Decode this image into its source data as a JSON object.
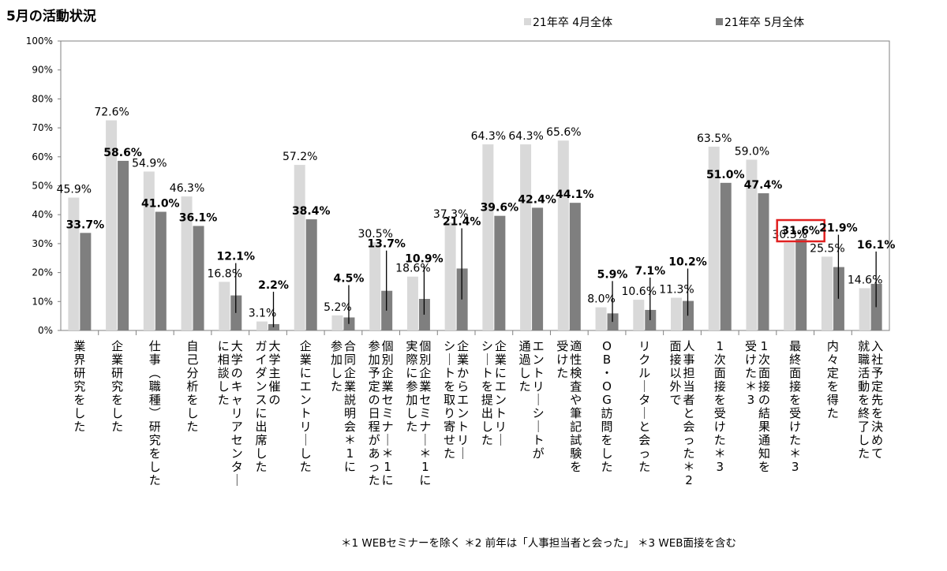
{
  "chart_data": {
    "type": "bar",
    "title": "5月の活動状況",
    "ylim": [
      0,
      100
    ],
    "yticks": [
      "0%",
      "10%",
      "20%",
      "30%",
      "40%",
      "50%",
      "60%",
      "70%",
      "80%",
      "90%",
      "100%"
    ],
    "grid": false,
    "legend_position": "top",
    "series": [
      {
        "name": "21年卒 4月全体",
        "color": "#d9d9d9",
        "values": [
          45.9,
          72.6,
          54.9,
          46.3,
          16.8,
          3.1,
          57.2,
          5.2,
          30.5,
          18.6,
          37.3,
          64.3,
          64.3,
          65.6,
          8.0,
          10.6,
          11.3,
          63.5,
          59.0,
          30.3,
          25.5,
          14.6
        ],
        "labels": [
          "45.9%",
          "72.6%",
          "54.9%",
          "46.3%",
          "16.8%",
          "3.1%",
          "57.2%",
          "5.2%",
          "30.5%",
          "18.6%",
          "37.3%",
          "64.3%",
          "64.3%",
          "65.6%",
          "8.0%",
          "10.6%",
          "11.3%",
          "63.5%",
          "59.0%",
          "30.3%",
          "25.5%",
          "14.6%"
        ]
      },
      {
        "name": "21年卒 5月全体",
        "color": "#7f7f7f",
        "values": [
          33.7,
          58.6,
          41.0,
          36.1,
          12.1,
          2.2,
          38.4,
          4.5,
          13.7,
          10.9,
          21.4,
          39.6,
          42.4,
          44.1,
          5.9,
          7.1,
          10.2,
          51.0,
          47.4,
          31.6,
          21.9,
          16.1
        ],
        "labels": [
          "33.7%",
          "58.6%",
          "41.0%",
          "36.1%",
          "12.1%",
          "2.2%",
          "38.4%",
          "4.5%",
          "13.7%",
          "10.9%",
          "21.4%",
          "39.6%",
          "42.4%",
          "44.1%",
          "5.9%",
          "7.1%",
          "10.2%",
          "51.0%",
          "47.4%",
          "31.6%",
          "21.9%",
          "16.1%"
        ]
      }
    ],
    "categories": [
      [
        "業界研究をした"
      ],
      [
        "企業研究をした"
      ],
      [
        "仕事(職種)研究をした"
      ],
      [
        "自己分析をした"
      ],
      [
        "大学のキャリアセンター",
        "に相談した"
      ],
      [
        "大学主催の",
        "ガイダンスに出席した"
      ],
      [
        "企業にエントリーした"
      ],
      [
        "合同企業説明会＊1に",
        "参加した"
      ],
      [
        "個別企業セミナー＊1に",
        "参加予定の日程があった"
      ],
      [
        "個別企業セミナー＊1に",
        "実際に参加した"
      ],
      [
        "企業からエントリー",
        "シートを取り寄せた"
      ],
      [
        "企業にエントリー",
        "シートを提出した"
      ],
      [
        "エントリーシートが",
        "通過した"
      ],
      [
        "適性検査や筆記試験を",
        "受けた"
      ],
      [
        "OB・OG訪問をした"
      ],
      [
        "リクルーターと会った"
      ],
      [
        "人事担当者と会った＊2",
        "面接以外で"
      ],
      [
        "1次面接を受けた＊3"
      ],
      [
        "1次面接の結果通知を",
        "受けた＊3"
      ],
      [
        "最終面接を受けた＊3"
      ],
      [
        "内々定を得た"
      ],
      [
        "入社予定先を決めて",
        "就職活動を終了した"
      ]
    ],
    "highlight_index": 19,
    "highlight_color": "#e02020",
    "footnote": "＊1  WEBセミナーを除く ＊2  前年は「人事担当者と会った」 ＊3  WEB面接を含む"
  }
}
